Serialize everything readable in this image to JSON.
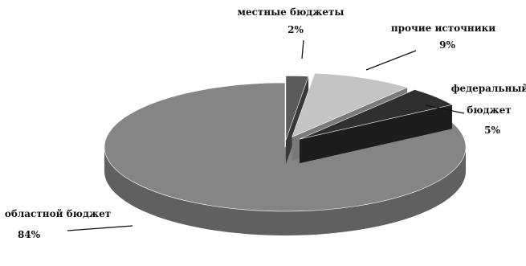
{
  "chart_data": {
    "type": "pie",
    "style": "3d-exploded",
    "title": "",
    "slices": [
      {
        "name": "местные бюджеты",
        "value": 2,
        "value_label": "2%",
        "color": "#5a5a5a"
      },
      {
        "name": "прочие источники",
        "value": 9,
        "value_label": "9%",
        "color": "#c4c4c4"
      },
      {
        "name": "федеральный бюджет",
        "value": 5,
        "value_label": "5%",
        "color": "#2f2f2f"
      },
      {
        "name": "областной бюджет",
        "value": 84,
        "value_label": "84%",
        "color": "#858585"
      }
    ],
    "label_lines": {
      "local": [
        "местные бюджеты",
        "2%"
      ],
      "other": [
        "прочие источники",
        "9%"
      ],
      "federal": [
        "федеральный",
        "бюджет",
        "5%"
      ],
      "regional": [
        "областной бюджет",
        "84%"
      ]
    }
  }
}
